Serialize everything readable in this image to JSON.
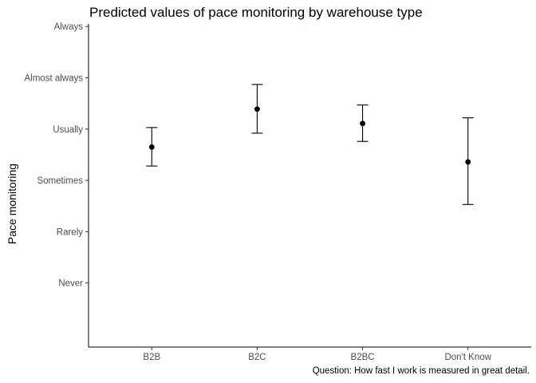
{
  "chart_data": {
    "type": "scatter",
    "subtype": "pointrange",
    "title": "Predicted values of pace monitoring by warehouse type",
    "caption": "Question: How fast I work is measured in great detail.",
    "xlabel": "",
    "ylabel": "Pace monitoring",
    "categories": [
      "B2B",
      "B2C",
      "B2BC",
      "Don't Know"
    ],
    "y_ticks": [
      1,
      2,
      3,
      4,
      5,
      6
    ],
    "y_tick_labels": [
      "Never",
      "Rarely",
      "Sometimes",
      "Usually",
      "Almost always",
      "Always"
    ],
    "ylim": [
      -0.25,
      6.05
    ],
    "points": [
      {
        "x": "B2B",
        "y": 3.65,
        "low": 3.28,
        "high": 4.03
      },
      {
        "x": "B2C",
        "y": 4.39,
        "low": 3.92,
        "high": 4.87
      },
      {
        "x": "B2BC",
        "y": 4.11,
        "low": 3.76,
        "high": 4.47
      },
      {
        "x": "Don't Know",
        "y": 3.36,
        "low": 2.53,
        "high": 4.22
      }
    ],
    "point_color": "#000000",
    "grid": false,
    "legend": "none"
  }
}
